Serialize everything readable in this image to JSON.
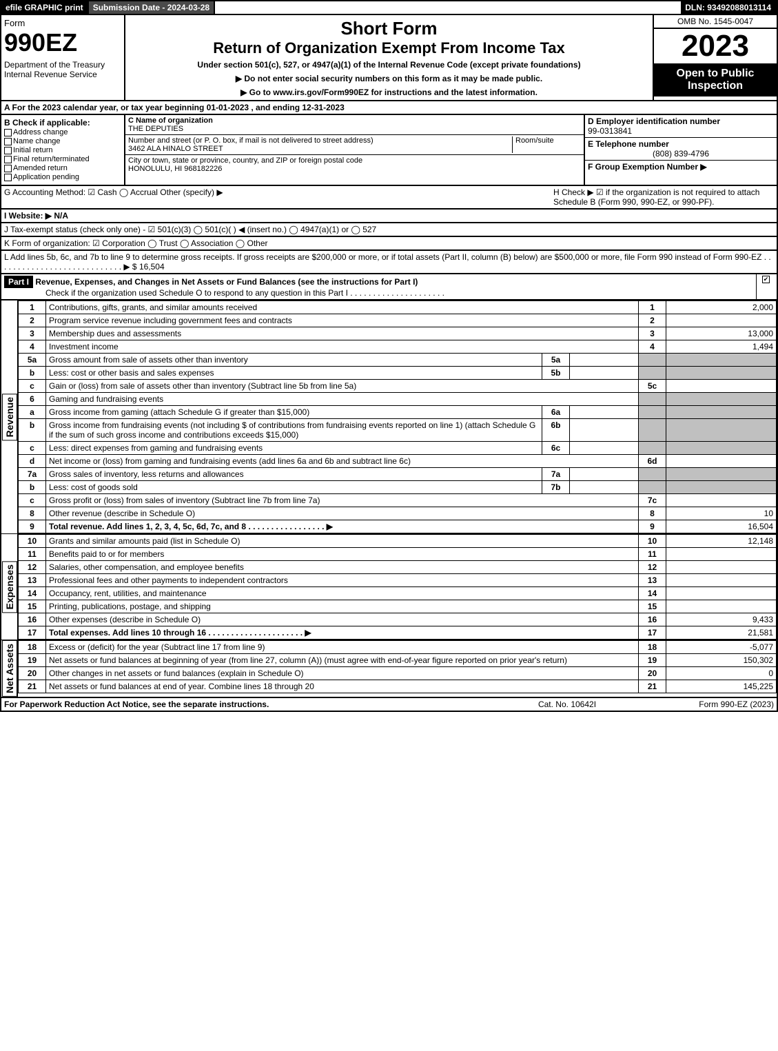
{
  "topbar": {
    "efile": "efile GRAPHIC print",
    "submission": "Submission Date - 2024-03-28",
    "dln": "DLN: 93492088013114"
  },
  "header": {
    "form_label": "Form",
    "form_num": "990EZ",
    "dept": "Department of the Treasury\nInternal Revenue Service",
    "short": "Short Form",
    "return_title": "Return of Organization Exempt From Income Tax",
    "under": "Under section 501(c), 527, or 4947(a)(1) of the Internal Revenue Code (except private foundations)",
    "warn": "▶ Do not enter social security numbers on this form as it may be made public.",
    "goto": "▶ Go to www.irs.gov/Form990EZ for instructions and the latest information.",
    "omb": "OMB No. 1545-0047",
    "year": "2023",
    "open": "Open to Public Inspection"
  },
  "section_a": "A  For the 2023 calendar year, or tax year beginning 01-01-2023 , and ending 12-31-2023",
  "box_b": {
    "title": "B  Check if applicable:",
    "items": [
      "Address change",
      "Name change",
      "Initial return",
      "Final return/terminated",
      "Amended return",
      "Application pending"
    ]
  },
  "box_c": {
    "name_lbl": "C Name of organization",
    "name": "THE DEPUTIES",
    "street_lbl": "Number and street (or P. O. box, if mail is not delivered to street address)",
    "room_lbl": "Room/suite",
    "street": "3462 ALA HINALO STREET",
    "city_lbl": "City or town, state or province, country, and ZIP or foreign postal code",
    "city": "HONOLULU, HI  968182226"
  },
  "box_d": {
    "lbl": "D Employer identification number",
    "val": "99-0313841"
  },
  "box_e": {
    "lbl": "E Telephone number",
    "val": "(808) 839-4796"
  },
  "box_f": {
    "lbl": "F Group Exemption Number  ▶",
    "val": ""
  },
  "row_g": {
    "g": "G Accounting Method:   ☑ Cash  ◯ Accrual   Other (specify) ▶",
    "h": "H  Check ▶ ☑ if the organization is not required to attach Schedule B (Form 990, 990-EZ, or 990-PF)."
  },
  "row_i": "I Website: ▶ N/A",
  "row_j": "J Tax-exempt status (check only one) - ☑ 501(c)(3) ◯ 501(c)(  ) ◀ (insert no.) ◯ 4947(a)(1) or ◯ 527",
  "row_k": "K Form of organization:  ☑ Corporation  ◯ Trust  ◯ Association  ◯ Other",
  "row_l": "L Add lines 5b, 6c, and 7b to line 9 to determine gross receipts. If gross receipts are $200,000 or more, or if total assets (Part II, column (B) below) are $500,000 or more, file Form 990 instead of Form 990-EZ  .  .  .  .  .  .  .  .  .  .  .  .  .  .  .  .  .  .  .  .  .  .  .  .  .  .  .  . ▶ $ 16,504",
  "part1": {
    "title": "Part I",
    "heading": "Revenue, Expenses, and Changes in Net Assets or Fund Balances (see the instructions for Part I)",
    "sub": "Check if the organization used Schedule O to respond to any question in this Part I  .  .  .  .  .  .  .  .  .  .  .  .  .  .  .  .  .  .  .  .  ."
  },
  "sections": {
    "revenue": "Revenue",
    "expenses": "Expenses",
    "netassets": "Net Assets"
  },
  "lines": [
    {
      "n": "1",
      "d": "Contributions, gifts, grants, and similar amounts received",
      "r": "1",
      "a": "2,000"
    },
    {
      "n": "2",
      "d": "Program service revenue including government fees and contracts",
      "r": "2",
      "a": ""
    },
    {
      "n": "3",
      "d": "Membership dues and assessments",
      "r": "3",
      "a": "13,000"
    },
    {
      "n": "4",
      "d": "Investment income",
      "r": "4",
      "a": "1,494"
    },
    {
      "n": "5a",
      "d": "Gross amount from sale of assets other than inventory",
      "sub": "5a",
      "sv": ""
    },
    {
      "n": "b",
      "d": "Less: cost or other basis and sales expenses",
      "sub": "5b",
      "sv": ""
    },
    {
      "n": "c",
      "d": "Gain or (loss) from sale of assets other than inventory (Subtract line 5b from line 5a)",
      "r": "5c",
      "a": ""
    },
    {
      "n": "6",
      "d": "Gaming and fundraising events"
    },
    {
      "n": "a",
      "d": "Gross income from gaming (attach Schedule G if greater than $15,000)",
      "sub": "6a",
      "sv": ""
    },
    {
      "n": "b",
      "d": "Gross income from fundraising events (not including $                    of contributions from fundraising events reported on line 1) (attach Schedule G if the sum of such gross income and contributions exceeds $15,000)",
      "sub": "6b",
      "sv": ""
    },
    {
      "n": "c",
      "d": "Less: direct expenses from gaming and fundraising events",
      "sub": "6c",
      "sv": ""
    },
    {
      "n": "d",
      "d": "Net income or (loss) from gaming and fundraising events (add lines 6a and 6b and subtract line 6c)",
      "r": "6d",
      "a": ""
    },
    {
      "n": "7a",
      "d": "Gross sales of inventory, less returns and allowances",
      "sub": "7a",
      "sv": ""
    },
    {
      "n": "b",
      "d": "Less: cost of goods sold",
      "sub": "7b",
      "sv": ""
    },
    {
      "n": "c",
      "d": "Gross profit or (loss) from sales of inventory (Subtract line 7b from line 7a)",
      "r": "7c",
      "a": ""
    },
    {
      "n": "8",
      "d": "Other revenue (describe in Schedule O)",
      "r": "8",
      "a": "10"
    },
    {
      "n": "9",
      "d": "Total revenue. Add lines 1, 2, 3, 4, 5c, 6d, 7c, and 8   .  .  .  .  .  .  .  .  .  .  .  .  .  .  .  .  . ▶",
      "r": "9",
      "a": "16,504",
      "bold": true
    }
  ],
  "exp_lines": [
    {
      "n": "10",
      "d": "Grants and similar amounts paid (list in Schedule O)",
      "r": "10",
      "a": "12,148"
    },
    {
      "n": "11",
      "d": "Benefits paid to or for members",
      "r": "11",
      "a": ""
    },
    {
      "n": "12",
      "d": "Salaries, other compensation, and employee benefits",
      "r": "12",
      "a": ""
    },
    {
      "n": "13",
      "d": "Professional fees and other payments to independent contractors",
      "r": "13",
      "a": ""
    },
    {
      "n": "14",
      "d": "Occupancy, rent, utilities, and maintenance",
      "r": "14",
      "a": ""
    },
    {
      "n": "15",
      "d": "Printing, publications, postage, and shipping",
      "r": "15",
      "a": ""
    },
    {
      "n": "16",
      "d": "Other expenses (describe in Schedule O)",
      "r": "16",
      "a": "9,433"
    },
    {
      "n": "17",
      "d": "Total expenses. Add lines 10 through 16    .  .  .  .  .  .  .  .  .  .  .  .  .  .  .  .  .  .  .  .  . ▶",
      "r": "17",
      "a": "21,581",
      "bold": true
    }
  ],
  "na_lines": [
    {
      "n": "18",
      "d": "Excess or (deficit) for the year (Subtract line 17 from line 9)",
      "r": "18",
      "a": "-5,077"
    },
    {
      "n": "19",
      "d": "Net assets or fund balances at beginning of year (from line 27, column (A)) (must agree with end-of-year figure reported on prior year's return)",
      "r": "19",
      "a": "150,302"
    },
    {
      "n": "20",
      "d": "Other changes in net assets or fund balances (explain in Schedule O)",
      "r": "20",
      "a": "0"
    },
    {
      "n": "21",
      "d": "Net assets or fund balances at end of year. Combine lines 18 through 20",
      "r": "21",
      "a": "145,225"
    }
  ],
  "footer": {
    "left": "For Paperwork Reduction Act Notice, see the separate instructions.",
    "center": "Cat. No. 10642I",
    "right": "Form 990-EZ (2023)"
  }
}
